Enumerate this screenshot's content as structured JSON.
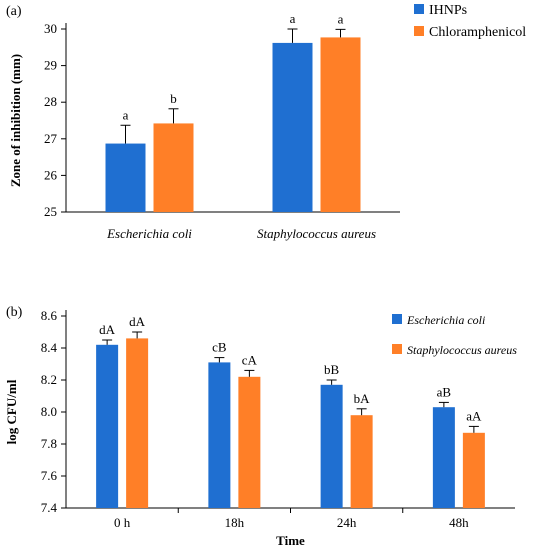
{
  "chart_data": [
    {
      "type": "bar",
      "panel_label": "(a)",
      "ylabel": "Zone of inhibition (mm)",
      "xlabel": "",
      "ylim": [
        25,
        30
      ],
      "yticks": [
        25,
        26,
        27,
        28,
        29,
        30
      ],
      "categories": [
        "Escherichia coli",
        "Staphylococcus aureus"
      ],
      "categories_italic": true,
      "legend_position": "top-right",
      "series": [
        {
          "name": "IHNPs",
          "color": "#1f6fd1",
          "values": [
            26.87,
            29.62
          ],
          "errors": [
            0.5,
            0.38
          ],
          "labels": [
            "a",
            "a"
          ]
        },
        {
          "name": "Chloramphenicol",
          "color": "#ff7f27",
          "values": [
            27.42,
            29.77
          ],
          "errors": [
            0.4,
            0.22
          ],
          "labels": [
            "b",
            "a"
          ]
        }
      ]
    },
    {
      "type": "bar",
      "panel_label": "(b)",
      "ylabel": "log CFU/ml",
      "xlabel": "Time",
      "ylim": [
        7.4,
        8.6
      ],
      "yticks": [
        "7.4",
        "7.6",
        "7.8",
        "8.0",
        "8.2",
        "8.4",
        "8.6"
      ],
      "categories": [
        "0 h",
        "18h",
        "24h",
        "48h"
      ],
      "categories_italic": false,
      "legend_position": "top-right",
      "series": [
        {
          "name": "Escherichia coli",
          "color": "#1f6fd1",
          "values": [
            8.42,
            8.31,
            8.17,
            8.03
          ],
          "errors": [
            0.03,
            0.03,
            0.03,
            0.03
          ],
          "labels": [
            "dA",
            "cB",
            "bB",
            "aB"
          ]
        },
        {
          "name": "Staphylococcus aureus",
          "color": "#ff7f27",
          "values": [
            8.46,
            8.22,
            7.98,
            7.87
          ],
          "errors": [
            0.04,
            0.04,
            0.04,
            0.04
          ],
          "labels": [
            "dA",
            "cA",
            "bA",
            "aA"
          ]
        }
      ]
    }
  ]
}
